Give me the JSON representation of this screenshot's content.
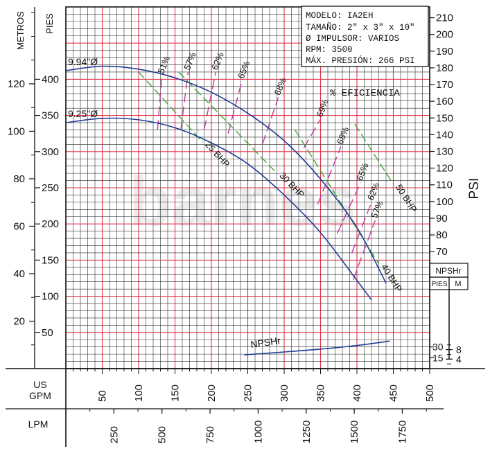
{
  "chart_data": {
    "type": "line",
    "title": "",
    "watermark": "barnes",
    "info_box": [
      "MODELO: IA2EH",
      "TAMAÑO: 2\" x 3\" x 10\"",
      "Ø IMPULSOR: VARIOS",
      "RPM: 3500",
      "MÁX. PRESIÓN: 266 PSI"
    ],
    "axes": {
      "x_gpm": {
        "label": "US GPM",
        "ticks": [
          "50",
          "100",
          "150",
          "200",
          "250",
          "300",
          "350",
          "400",
          "450",
          "500"
        ],
        "range": [
          0,
          500
        ]
      },
      "x_lpm": {
        "label": "LPM",
        "ticks": [
          "250",
          "500",
          "750",
          "1000",
          "1250",
          "1500",
          "1750"
        ]
      },
      "y_ft": {
        "label": "PIES",
        "ticks": [
          "50",
          "100",
          "150",
          "200",
          "250",
          "300",
          "350",
          "400"
        ],
        "range": [
          0,
          500
        ]
      },
      "y_m": {
        "label": "METROS",
        "ticks": [
          "20",
          "40",
          "60",
          "80",
          "100",
          "120"
        ]
      },
      "y_psi": {
        "label": "PSI",
        "ticks": [
          "70",
          "80",
          "90",
          "100",
          "110",
          "120",
          "130",
          "140",
          "150",
          "160",
          "170",
          "180",
          "190",
          "200",
          "210"
        ]
      },
      "npsh_box": {
        "title": "NPSHr",
        "col_ft": "PIES",
        "col_m": "M",
        "ticks_ft": [
          "15",
          "30"
        ],
        "ticks_m": [
          "4",
          "8"
        ]
      }
    },
    "series": [
      {
        "name": "9.94\"Ø",
        "x": [
          0,
          50,
          100,
          150,
          200,
          250,
          300,
          350,
          400,
          440
        ],
        "y": [
          412,
          418,
          414,
          402,
          382,
          353,
          315,
          262,
          195,
          118
        ]
      },
      {
        "name": "9.25\"Ø",
        "x": [
          0,
          50,
          100,
          150,
          200,
          250,
          300,
          350,
          400,
          420
        ],
        "y": [
          340,
          346,
          344,
          333,
          312,
          283,
          240,
          188,
          122,
          95
        ]
      },
      {
        "name": "NPSHr",
        "x": [
          245,
          300,
          350,
          400,
          445
        ],
        "y": [
          19,
          23,
          27,
          32,
          38
        ]
      }
    ],
    "efficiency_label": "% EFICIENCIA",
    "efficiency_lines": [
      {
        "label": "51%",
        "x": [
          126,
          132
        ],
        "y": [
          330,
          405
        ]
      },
      {
        "label": "57%",
        "x": [
          158,
          168
        ],
        "y": [
          330,
          410
        ]
      },
      {
        "label": "62%",
        "x": [
          190,
          206
        ],
        "y": [
          330,
          410
        ]
      },
      {
        "label": "65%",
        "x": [
          223,
          242
        ],
        "y": [
          325,
          398
        ]
      },
      {
        "label": "68%",
        "x": [
          270,
          292
        ],
        "y": [
          310,
          375
        ]
      },
      {
        "label": "69%",
        "x": [
          327,
          350
        ],
        "y": [
          305,
          345
        ]
      },
      {
        "label": "68%",
        "x": [
          346,
          378
        ],
        "y": [
          227,
          307
        ]
      },
      {
        "label": "65%",
        "x": [
          373,
          405
        ],
        "y": [
          187,
          257
        ]
      },
      {
        "label": "62%",
        "x": [
          393,
          420
        ],
        "y": [
          160,
          230
        ]
      },
      {
        "label": "57%",
        "x": [
          395,
          425
        ],
        "y": [
          123,
          205
        ]
      }
    ],
    "bhp_lines": [
      {
        "label": "25 BHP",
        "x": [
          100,
          188
        ],
        "y": [
          410,
          313
        ]
      },
      {
        "label": "30 BHP",
        "x": [
          155,
          290
        ],
        "y": [
          410,
          270
        ]
      },
      {
        "label": "40 BHP",
        "x": [
          315,
          430
        ],
        "y": [
          330,
          145
        ]
      },
      {
        "label": "50 BHP",
        "x": [
          397,
          450
        ],
        "y": [
          338,
          255
        ]
      }
    ]
  }
}
